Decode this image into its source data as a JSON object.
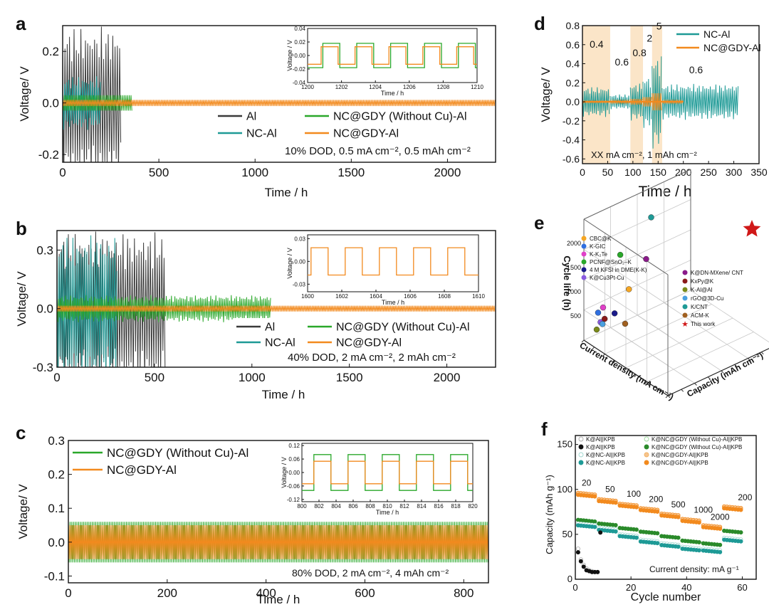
{
  "colors": {
    "Al": "#3a3a3a",
    "NC_Al": "#1e9a96",
    "NCGDY_noCu": "#2aa82a",
    "NCGDY": "#f28a1e",
    "K_Al_open": "#aaaaaa",
    "K_Al_filled": "#111111",
    "K_NC_open": "#9fd8d0",
    "K_NC_filled": "#1e9a96",
    "NCGDY_noCu_filled": "#2a8a2a",
    "NCGDY_open": "#f7c590",
    "NCGDY_filled": "#f28a1e",
    "shade": "#fbe5c8",
    "star": "#d01818"
  },
  "chart_data": [
    {
      "panel": "a",
      "type": "line",
      "xlabel": "Time / h",
      "ylabel": "Voltage/ V",
      "xlim": [
        0,
        2250
      ],
      "ylim": [
        -0.23,
        0.3
      ],
      "xticks": [
        0,
        500,
        1000,
        1500,
        2000
      ],
      "yticks": [
        -0.2,
        0.0,
        0.2
      ],
      "annotation": "10% DOD,  0.5 mA cm⁻², 0.5 mAh cm⁻²",
      "legend": [
        "Al",
        "NC-Al",
        "NC@GDY (Without Cu)-Al",
        "NC@GDY-Al"
      ],
      "series": [
        {
          "name": "Al",
          "x_end": 305,
          "amplitude": 0.3
        },
        {
          "name": "NC-Al",
          "x_end": 200,
          "amplitude": 0.15
        },
        {
          "name": "NC@GDY (Without Cu)-Al",
          "x_end": 360,
          "amplitude": 0.03
        },
        {
          "name": "NC@GDY-Al",
          "x_end": 2250,
          "amplitude": 0.02
        }
      ],
      "inset": {
        "xlabel": "Time / h",
        "ylabel": "Voltage / V",
        "xlim": [
          1200,
          1210
        ],
        "ylim": [
          -0.04,
          0.04
        ],
        "xticks": [
          1200,
          1202,
          1204,
          1206,
          1208,
          1210
        ],
        "yticks": [
          -0.04,
          -0.02,
          0.0,
          0.02,
          0.04
        ],
        "series": [
          {
            "name": "NC@GDY (Without Cu)-Al",
            "amplitude": 0.018
          },
          {
            "name": "NC@GDY-Al",
            "amplitude": 0.013
          }
        ]
      }
    },
    {
      "panel": "b",
      "type": "line",
      "xlabel": "Time / h",
      "ylabel": "Voltage/ V",
      "xlim": [
        0,
        2250
      ],
      "ylim": [
        -0.3,
        0.4
      ],
      "xticks": [
        0,
        500,
        1000,
        1500,
        2000
      ],
      "yticks": [
        -0.3,
        0.0,
        0.3
      ],
      "annotation": "40% DOD,  2 mA cm⁻², 2 mAh cm⁻²",
      "legend": [
        "Al",
        "NC-Al",
        "NC@GDY (Without Cu)-Al",
        "NC@GDY-Al"
      ],
      "series": [
        {
          "name": "Al",
          "x_end": 560,
          "amplitude": 0.4
        },
        {
          "name": "NC-Al",
          "x_end": 310,
          "amplitude": 0.38
        },
        {
          "name": "NC@GDY (Without Cu)-Al",
          "x_end": 1100,
          "amplitude": 0.07
        },
        {
          "name": "NC@GDY-Al",
          "x_end": 2250,
          "amplitude": 0.025
        }
      ],
      "inset": {
        "xlabel": "Time / h",
        "ylabel": "Voltage / V",
        "xlim": [
          1600,
          1610
        ],
        "ylim": [
          -0.04,
          0.035
        ],
        "xticks": [
          1600,
          1602,
          1604,
          1606,
          1608,
          1610
        ],
        "yticks": [
          -0.03,
          0.0,
          0.03
        ],
        "series": [
          {
            "name": "NC@GDY-Al",
            "amplitude": 0.018
          }
        ]
      }
    },
    {
      "panel": "c",
      "type": "line",
      "xlabel": "Time / h",
      "ylabel": "Voltage/ V",
      "xlim": [
        0,
        850
      ],
      "ylim": [
        -0.12,
        0.3
      ],
      "xticks": [
        0,
        200,
        400,
        600,
        800
      ],
      "yticks": [
        -0.1,
        0.0,
        0.1,
        0.2,
        0.3
      ],
      "annotation": "80% DOD,  2 mA cm⁻², 4 mAh cm⁻²",
      "legend": [
        "NC@GDY (Without Cu)-Al",
        "NC@GDY-Al"
      ],
      "series": [
        {
          "name": "NC@GDY (Without Cu)-Al",
          "x_end": 850,
          "amplitude": 0.06
        },
        {
          "name": "NC@GDY-Al",
          "x_end": 850,
          "amplitude": 0.05
        }
      ],
      "inset": {
        "xlabel": "Time / h",
        "ylabel": "Voltage / V",
        "xlim": [
          800,
          820
        ],
        "ylim": [
          -0.13,
          0.13
        ],
        "xticks": [
          800,
          802,
          804,
          806,
          808,
          810,
          812,
          814,
          816,
          818,
          820
        ],
        "yticks": [
          -0.12,
          -0.06,
          0.0,
          0.06,
          0.12
        ],
        "series": [
          {
            "name": "NC@GDY (Without Cu)-Al",
            "amplitude": 0.08
          },
          {
            "name": "NC@GDY-Al",
            "amplitude": 0.05
          }
        ]
      }
    },
    {
      "panel": "d",
      "type": "line",
      "xlabel": "Time / h",
      "ylabel": "Voltage/ V",
      "xlim": [
        0,
        350
      ],
      "ylim": [
        -0.65,
        0.8
      ],
      "xticks": [
        0,
        50,
        100,
        150,
        200,
        250,
        300,
        350
      ],
      "yticks": [
        -0.6,
        -0.4,
        -0.2,
        0.0,
        0.2,
        0.4,
        0.6,
        0.8
      ],
      "annotation": "XX mA cm⁻², 1 mAh cm⁻²",
      "legend": [
        "NC-Al",
        "NC@GDY-Al"
      ],
      "rate_labels": [
        {
          "label": "0.4",
          "x": 28,
          "y": 0.57
        },
        {
          "label": "0.6",
          "x": 78,
          "y": 0.38
        },
        {
          "label": "0.8",
          "x": 113,
          "y": 0.48
        },
        {
          "label": "2",
          "x": 133,
          "y": 0.63
        },
        {
          "label": "5",
          "x": 152,
          "y": 0.76
        },
        {
          "label": "0.6",
          "x": 225,
          "y": 0.3
        }
      ],
      "rate_segments": [
        {
          "current": 0.4,
          "x_start": 0,
          "x_end": 55,
          "shaded": true
        },
        {
          "current": 0.6,
          "x_start": 55,
          "x_end": 95,
          "shaded": false
        },
        {
          "current": 0.8,
          "x_start": 95,
          "x_end": 120,
          "shaded": true
        },
        {
          "current": 2,
          "x_start": 120,
          "x_end": 138,
          "shaded": false
        },
        {
          "current": 5,
          "x_start": 138,
          "x_end": 158,
          "shaded": true
        },
        {
          "current": 0.6,
          "x_start": 158,
          "x_end": 310,
          "shaded": false
        }
      ],
      "series": [
        {
          "name": "NC-Al",
          "segments": [
            {
              "x0": 0,
              "x1": 55,
              "amplitude": 0.16
            },
            {
              "x0": 55,
              "x1": 95,
              "amplitude": 0.08
            },
            {
              "x0": 95,
              "x1": 120,
              "amplitude": 0.2
            },
            {
              "x0": 120,
              "x1": 138,
              "amplitude": 0.28
            },
            {
              "x0": 138,
              "x1": 158,
              "amplitude": 0.5
            },
            {
              "x0": 158,
              "x1": 310,
              "amplitude": 0.19
            }
          ]
        },
        {
          "name": "NC@GDY-Al",
          "segments": [
            {
              "x0": 0,
              "x1": 55,
              "amplitude": 0.01
            },
            {
              "x0": 55,
              "x1": 95,
              "amplitude": 0.015
            },
            {
              "x0": 95,
              "x1": 120,
              "amplitude": 0.03
            },
            {
              "x0": 120,
              "x1": 138,
              "amplitude": 0.05
            },
            {
              "x0": 138,
              "x1": 158,
              "amplitude": 0.09
            },
            {
              "x0": 158,
              "x1": 200,
              "amplitude": 0.015
            }
          ]
        }
      ]
    },
    {
      "panel": "e",
      "type": "scatter",
      "zlabel": "Cycle life (h)",
      "xlabel": "Current density (mA cm⁻²)",
      "ylabel": "Capacity (mAh cm⁻²)",
      "zticks": [
        500,
        1000,
        1500,
        2000
      ],
      "legend_left": [
        {
          "name": "CBC@K",
          "color": "#f5a623"
        },
        {
          "name": "K-GIC",
          "color": "#2f6fe0"
        },
        {
          "name": "K-K₂Te",
          "color": "#e040c8"
        },
        {
          "name": "PCNF@SnO₂–K",
          "color": "#2aa82a"
        },
        {
          "name": "4 M KFSI in DME(K-K)",
          "color": "#1a1a8a"
        },
        {
          "name": "K@Cu3Pt-Cu",
          "color": "#8a5ae0"
        }
      ],
      "legend_right": [
        {
          "name": "K@DN-MXene/ CNT",
          "color": "#8a1a8a"
        },
        {
          "name": "KxPy@K",
          "color": "#8a1a1a"
        },
        {
          "name": "K-Al@Al",
          "color": "#7a8a1a"
        },
        {
          "name": "rGO@3D-Cu",
          "color": "#4aa0e0"
        },
        {
          "name": "K/CNT",
          "color": "#1e9a96"
        },
        {
          "name": "ACM-K",
          "color": "#a06020"
        },
        {
          "name": "This work",
          "color": "#d01818"
        }
      ],
      "points": [
        {
          "name": "CBC@K",
          "cycle_life": 1200
        },
        {
          "name": "K-GIC",
          "cycle_life": 650
        },
        {
          "name": "K-K₂Te",
          "cycle_life": 750
        },
        {
          "name": "PCNF@SnO₂–K",
          "cycle_life": 1700
        },
        {
          "name": "4 M KFSI in DME(K-K)",
          "cycle_life": 600
        },
        {
          "name": "K@Cu3Pt-Cu",
          "cycle_life": 450
        },
        {
          "name": "K@DN-MXene/ CNT",
          "cycle_life": 1500
        },
        {
          "name": "KxPy@K",
          "cycle_life": 500
        },
        {
          "name": "K-Al@Al",
          "cycle_life": 300
        },
        {
          "name": "rGO@3D-Cu",
          "cycle_life": 400
        },
        {
          "name": "K/CNT",
          "cycle_life": 2300
        },
        {
          "name": "ACM-K",
          "cycle_life": 250
        },
        {
          "name": "This work",
          "cycle_life": 2250
        }
      ]
    },
    {
      "panel": "f",
      "type": "scatter",
      "xlabel": "Cycle number",
      "ylabel": "Capacity (mAh g⁻¹)",
      "xlim": [
        0,
        65
      ],
      "ylim": [
        0,
        160
      ],
      "xticks": [
        0,
        20,
        40,
        60
      ],
      "yticks": [
        0,
        50,
        100,
        150
      ],
      "annotation": "Current density: mA g⁻¹",
      "rate_labels": [
        {
          "label": "20",
          "x": 4,
          "y": 104
        },
        {
          "label": "50",
          "x": 12.5,
          "y": 97
        },
        {
          "label": "100",
          "x": 21,
          "y": 92
        },
        {
          "label": "200",
          "x": 29,
          "y": 86
        },
        {
          "label": "500",
          "x": 37,
          "y": 80
        },
        {
          "label": "1000",
          "x": 46,
          "y": 74
        },
        {
          "label": "2000",
          "x": 52,
          "y": 66
        },
        {
          "label": "200",
          "x": 61,
          "y": 88
        }
      ],
      "legend": [
        "K@Al||KPB",
        "K@Al||KPB",
        "K@NC-Al||KPB",
        "K@NC-Al||KPB",
        "K@NC@GDY (Without Cu)-Al||KPB",
        "K@NC@GDY (Without Cu)-Al||KPB",
        "K@NC@GDY-Al||KPB",
        "K@NC@GDY-Al||KPB"
      ],
      "series": [
        {
          "name": "K@NC@GDY-Al||KPB (open)",
          "levels": [
            96,
            89,
            84,
            79,
            73,
            67,
            60,
            81
          ]
        },
        {
          "name": "K@NC@GDY-Al||KPB (filled)",
          "levels": [
            94,
            87,
            82,
            77,
            71,
            65,
            58,
            79
          ]
        },
        {
          "name": "K@NC@GDY (Without Cu)-Al||KPB (filled)",
          "levels": [
            66,
            62,
            57,
            53,
            48,
            43,
            40,
            54
          ]
        },
        {
          "name": "K@NC-Al||KPB (open)",
          "levels": [
            62,
            57,
            50,
            44,
            40,
            36,
            34,
            46
          ]
        },
        {
          "name": "K@NC-Al||KPB (filled)",
          "levels": [
            60,
            55,
            48,
            42,
            38,
            34,
            32,
            44
          ]
        },
        {
          "name": "K@Al||KPB (open)",
          "cycles": [
            1,
            2,
            3,
            4,
            5,
            6,
            7,
            8
          ],
          "values": [
            34,
            22,
            16,
            12,
            10,
            9,
            8,
            8
          ]
        },
        {
          "name": "K@Al||KPB (filled)",
          "cycles": [
            1,
            2,
            3,
            4,
            5,
            6,
            7,
            8,
            9
          ],
          "values": [
            30,
            20,
            14,
            10,
            9,
            8,
            8,
            8,
            52
          ]
        }
      ]
    }
  ]
}
